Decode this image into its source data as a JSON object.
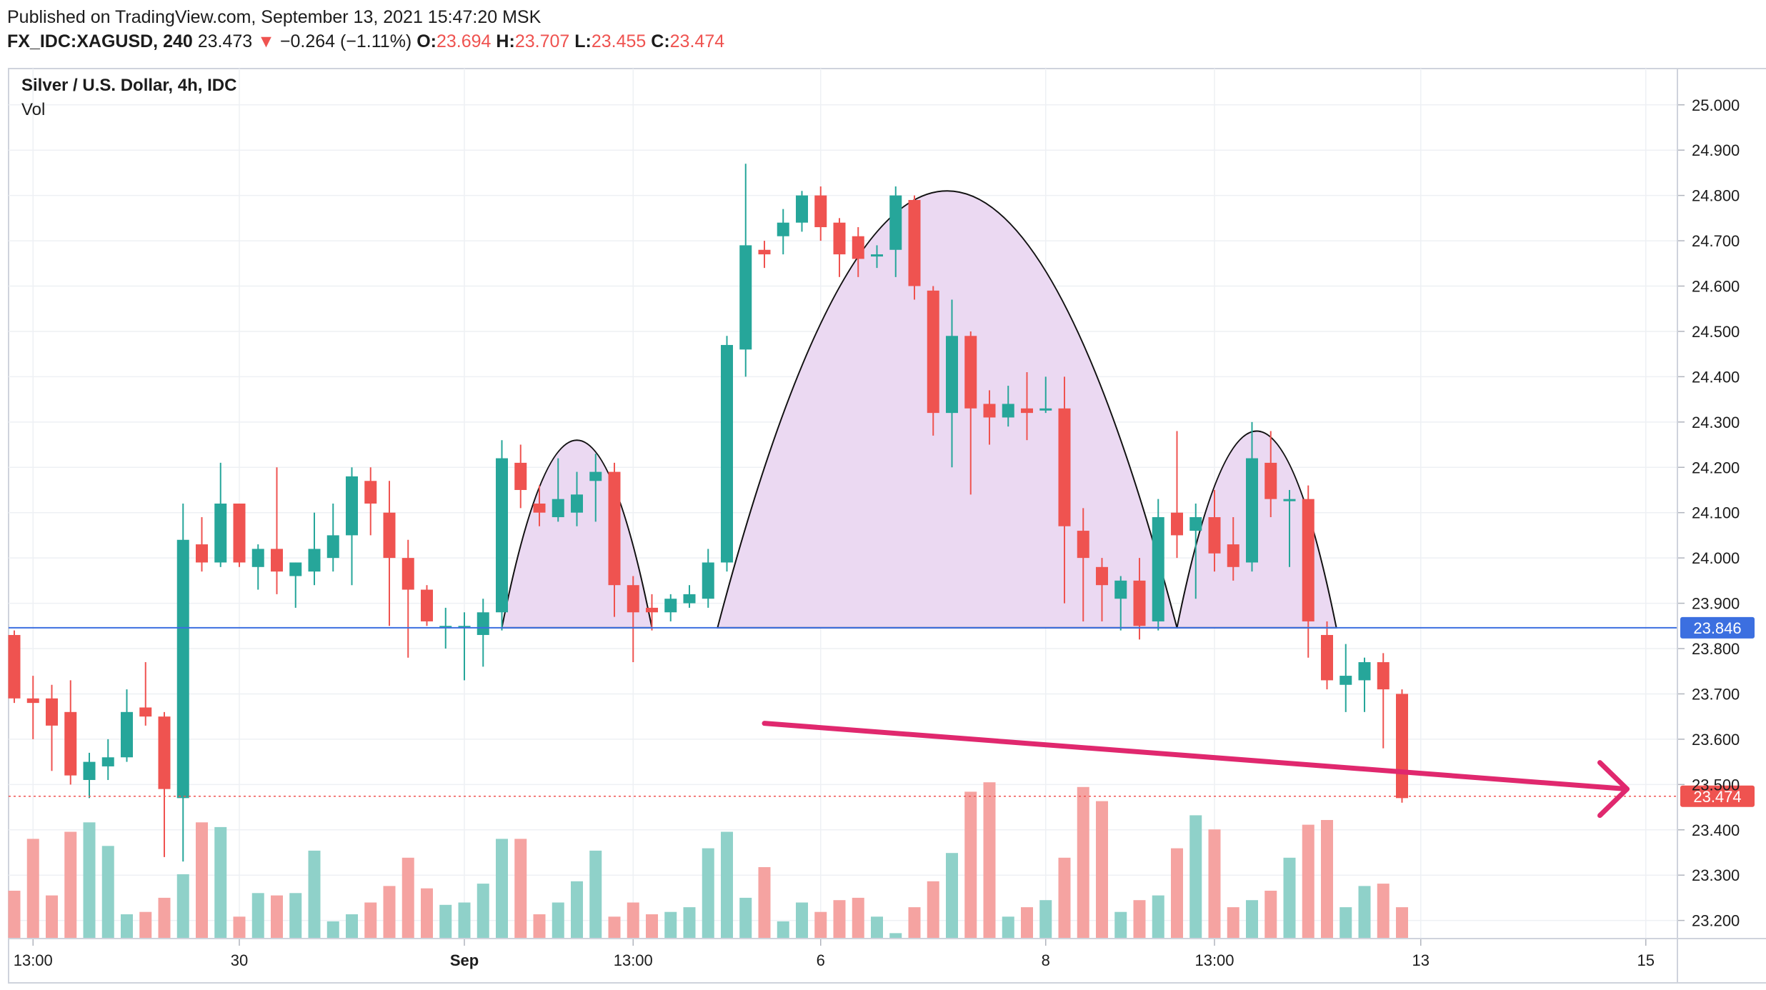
{
  "header": {
    "published": "Published on TradingView.com, September 13, 2021 15:47:20 MSK",
    "symbol": "FX_IDC:XAGUSD, 240",
    "last": "23.473",
    "down_arrow": "▼",
    "change": "−0.264 (−1.11%)",
    "o_label": "O:",
    "o_value": "23.694",
    "h_label": "H:",
    "h_value": "23.707",
    "l_label": "L:",
    "l_value": "23.455",
    "c_label": "C:",
    "c_value": "23.474"
  },
  "legend": {
    "title": "Silver / U.S. Dollar, 4h, IDC",
    "volume": "Vol"
  },
  "colors": {
    "up": "#26a69a",
    "down": "#ef5350",
    "up_vol": "#8fd1c9",
    "down_vol": "#f5a3a1",
    "pattern_fill": "#ebd9f2",
    "hline": "#3c6fe0",
    "trend": "#e0286e",
    "price_tag": "#ef5350"
  },
  "chart_data": {
    "type": "candlestick",
    "title": "Silver / U.S. Dollar, 4h, IDC",
    "y_axis": {
      "range": [
        23.16,
        25.08
      ],
      "ticks": [
        "25.000",
        "24.900",
        "24.800",
        "24.700",
        "24.600",
        "24.500",
        "24.400",
        "24.300",
        "24.200",
        "24.100",
        "24.000",
        "23.900",
        "23.800",
        "23.700",
        "23.600",
        "23.500",
        "23.400",
        "23.300",
        "23.200"
      ]
    },
    "x_axis": {
      "labels": [
        "13:00",
        "30",
        "Sep",
        "13:00",
        "6",
        "8",
        "13:00",
        "13",
        "15"
      ],
      "label_index": [
        1,
        12,
        24,
        33,
        43,
        55,
        64,
        75,
        87
      ]
    },
    "candles": [
      {
        "o": 23.83,
        "h": 23.84,
        "l": 23.68,
        "c": 23.69
      },
      {
        "o": 23.69,
        "h": 23.74,
        "l": 23.6,
        "c": 23.68
      },
      {
        "o": 23.69,
        "h": 23.72,
        "l": 23.53,
        "c": 23.63
      },
      {
        "o": 23.66,
        "h": 23.73,
        "l": 23.5,
        "c": 23.52
      },
      {
        "o": 23.51,
        "h": 23.57,
        "l": 23.47,
        "c": 23.55
      },
      {
        "o": 23.54,
        "h": 23.6,
        "l": 23.51,
        "c": 23.56
      },
      {
        "o": 23.56,
        "h": 23.71,
        "l": 23.55,
        "c": 23.66
      },
      {
        "o": 23.67,
        "h": 23.77,
        "l": 23.63,
        "c": 23.65
      },
      {
        "o": 23.65,
        "h": 23.66,
        "l": 23.34,
        "c": 23.49
      },
      {
        "o": 23.47,
        "h": 24.12,
        "l": 23.33,
        "c": 24.04
      },
      {
        "o": 24.03,
        "h": 24.09,
        "l": 23.97,
        "c": 23.99
      },
      {
        "o": 23.99,
        "h": 24.21,
        "l": 23.98,
        "c": 24.12
      },
      {
        "o": 24.12,
        "h": 24.12,
        "l": 23.98,
        "c": 23.99
      },
      {
        "o": 23.98,
        "h": 24.03,
        "l": 23.93,
        "c": 24.02
      },
      {
        "o": 24.02,
        "h": 24.2,
        "l": 23.92,
        "c": 23.97
      },
      {
        "o": 23.96,
        "h": 23.99,
        "l": 23.89,
        "c": 23.99
      },
      {
        "o": 23.97,
        "h": 24.1,
        "l": 23.94,
        "c": 24.02
      },
      {
        "o": 24.0,
        "h": 24.12,
        "l": 23.97,
        "c": 24.05
      },
      {
        "o": 24.05,
        "h": 24.2,
        "l": 23.94,
        "c": 24.18
      },
      {
        "o": 24.17,
        "h": 24.2,
        "l": 24.05,
        "c": 24.12
      },
      {
        "o": 24.1,
        "h": 24.17,
        "l": 23.85,
        "c": 24.0
      },
      {
        "o": 24.0,
        "h": 24.04,
        "l": 23.78,
        "c": 23.93
      },
      {
        "o": 23.93,
        "h": 23.94,
        "l": 23.85,
        "c": 23.86
      },
      {
        "o": 23.85,
        "h": 23.89,
        "l": 23.8,
        "c": 23.85
      },
      {
        "o": 23.85,
        "h": 23.88,
        "l": 23.73,
        "c": 23.85
      },
      {
        "o": 23.83,
        "h": 23.91,
        "l": 23.76,
        "c": 23.88
      },
      {
        "o": 23.88,
        "h": 24.26,
        "l": 23.84,
        "c": 24.22
      },
      {
        "o": 24.21,
        "h": 24.25,
        "l": 24.11,
        "c": 24.15
      },
      {
        "o": 24.12,
        "h": 24.16,
        "l": 24.07,
        "c": 24.1
      },
      {
        "o": 24.09,
        "h": 24.22,
        "l": 24.08,
        "c": 24.13
      },
      {
        "o": 24.1,
        "h": 24.19,
        "l": 24.07,
        "c": 24.14
      },
      {
        "o": 24.17,
        "h": 24.23,
        "l": 24.08,
        "c": 24.19
      },
      {
        "o": 24.19,
        "h": 24.21,
        "l": 23.87,
        "c": 23.94
      },
      {
        "o": 23.94,
        "h": 23.96,
        "l": 23.77,
        "c": 23.88
      },
      {
        "o": 23.89,
        "h": 23.92,
        "l": 23.84,
        "c": 23.88
      },
      {
        "o": 23.88,
        "h": 23.92,
        "l": 23.86,
        "c": 23.91
      },
      {
        "o": 23.9,
        "h": 23.94,
        "l": 23.89,
        "c": 23.92
      },
      {
        "o": 23.91,
        "h": 24.02,
        "l": 23.89,
        "c": 23.99
      },
      {
        "o": 23.99,
        "h": 24.49,
        "l": 23.97,
        "c": 24.47
      },
      {
        "o": 24.46,
        "h": 24.87,
        "l": 24.4,
        "c": 24.69
      },
      {
        "o": 24.68,
        "h": 24.7,
        "l": 24.64,
        "c": 24.67
      },
      {
        "o": 24.71,
        "h": 24.77,
        "l": 24.67,
        "c": 24.74
      },
      {
        "o": 24.74,
        "h": 24.81,
        "l": 24.72,
        "c": 24.8
      },
      {
        "o": 24.8,
        "h": 24.82,
        "l": 24.7,
        "c": 24.73
      },
      {
        "o": 24.74,
        "h": 24.75,
        "l": 24.62,
        "c": 24.67
      },
      {
        "o": 24.71,
        "h": 24.73,
        "l": 24.62,
        "c": 24.66
      },
      {
        "o": 24.67,
        "h": 24.69,
        "l": 24.64,
        "c": 24.67
      },
      {
        "o": 24.68,
        "h": 24.82,
        "l": 24.62,
        "c": 24.8
      },
      {
        "o": 24.79,
        "h": 24.8,
        "l": 24.57,
        "c": 24.6
      },
      {
        "o": 24.59,
        "h": 24.6,
        "l": 24.27,
        "c": 24.32
      },
      {
        "o": 24.32,
        "h": 24.57,
        "l": 24.2,
        "c": 24.49
      },
      {
        "o": 24.49,
        "h": 24.5,
        "l": 24.14,
        "c": 24.33
      },
      {
        "o": 24.34,
        "h": 24.37,
        "l": 24.25,
        "c": 24.31
      },
      {
        "o": 24.31,
        "h": 24.38,
        "l": 24.29,
        "c": 24.34
      },
      {
        "o": 24.33,
        "h": 24.41,
        "l": 24.26,
        "c": 24.32
      },
      {
        "o": 24.33,
        "h": 24.4,
        "l": 24.32,
        "c": 24.33
      },
      {
        "o": 24.33,
        "h": 24.4,
        "l": 23.9,
        "c": 24.07
      },
      {
        "o": 24.06,
        "h": 24.11,
        "l": 23.86,
        "c": 24.0
      },
      {
        "o": 23.98,
        "h": 24.0,
        "l": 23.86,
        "c": 23.94
      },
      {
        "o": 23.91,
        "h": 23.96,
        "l": 23.84,
        "c": 23.95
      },
      {
        "o": 23.95,
        "h": 24.0,
        "l": 23.82,
        "c": 23.85
      },
      {
        "o": 23.86,
        "h": 24.13,
        "l": 23.84,
        "c": 24.09
      },
      {
        "o": 24.1,
        "h": 24.28,
        "l": 24.0,
        "c": 24.05
      },
      {
        "o": 24.06,
        "h": 24.12,
        "l": 23.91,
        "c": 24.09
      },
      {
        "o": 24.09,
        "h": 24.15,
        "l": 23.97,
        "c": 24.01
      },
      {
        "o": 24.03,
        "h": 24.09,
        "l": 23.95,
        "c": 23.98
      },
      {
        "o": 23.99,
        "h": 24.3,
        "l": 23.97,
        "c": 24.22
      },
      {
        "o": 24.21,
        "h": 24.28,
        "l": 24.09,
        "c": 24.13
      },
      {
        "o": 24.13,
        "h": 24.15,
        "l": 23.98,
        "c": 24.13
      },
      {
        "o": 24.13,
        "h": 24.16,
        "l": 23.78,
        "c": 23.86
      },
      {
        "o": 23.83,
        "h": 23.86,
        "l": 23.71,
        "c": 23.73
      },
      {
        "o": 23.72,
        "h": 23.81,
        "l": 23.66,
        "c": 23.74
      },
      {
        "o": 23.73,
        "h": 23.78,
        "l": 23.66,
        "c": 23.77
      },
      {
        "o": 23.77,
        "h": 23.79,
        "l": 23.58,
        "c": 23.71
      },
      {
        "o": 23.7,
        "h": 23.71,
        "l": 23.46,
        "c": 23.47
      }
    ],
    "volume": [
      0.2,
      0.42,
      0.18,
      0.45,
      0.49,
      0.39,
      0.1,
      0.11,
      0.17,
      0.27,
      0.49,
      0.47,
      0.09,
      0.19,
      0.18,
      0.19,
      0.37,
      0.07,
      0.1,
      0.15,
      0.22,
      0.34,
      0.21,
      0.14,
      0.15,
      0.23,
      0.42,
      0.42,
      0.1,
      0.15,
      0.24,
      0.37,
      0.09,
      0.15,
      0.1,
      0.11,
      0.13,
      0.38,
      0.45,
      0.17,
      0.3,
      0.07,
      0.15,
      0.11,
      0.16,
      0.17,
      0.09,
      0.02,
      0.13,
      0.24,
      0.36,
      0.62,
      0.66,
      0.09,
      0.13,
      0.16,
      0.34,
      0.64,
      0.58,
      0.11,
      0.16,
      0.18,
      0.38,
      0.52,
      0.46,
      0.13,
      0.16,
      0.2,
      0.34,
      0.48,
      0.5,
      0.13,
      0.22,
      0.23,
      0.13
    ],
    "support_level": 23.846,
    "last_price": "23.474",
    "support_label": "23.846",
    "last_price_label": "23.474",
    "patterns": [
      "head",
      "left-shoulder",
      "right-shoulder"
    ],
    "trendline": {
      "from_index": 40,
      "from_price": 23.635,
      "to_index": 86,
      "to_price": 23.49
    }
  }
}
